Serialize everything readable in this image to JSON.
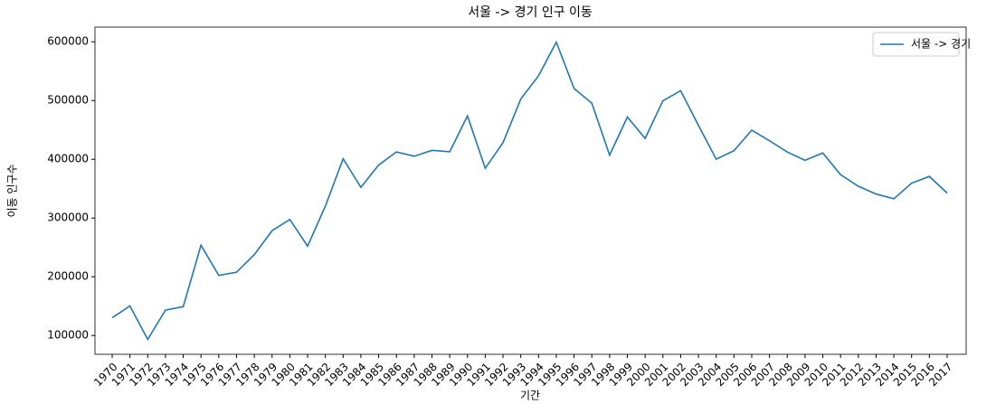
{
  "chart_data": {
    "type": "line",
    "title": "서울 -> 경기 인구 이동",
    "x_label": "기간",
    "y_label": "이동 인구수",
    "categories": [
      "1970",
      "1971",
      "1972",
      "1973",
      "1974",
      "1975",
      "1976",
      "1977",
      "1978",
      "1979",
      "1980",
      "1981",
      "1982",
      "1983",
      "1984",
      "1985",
      "1986",
      "1987",
      "1988",
      "1989",
      "1990",
      "1991",
      "1992",
      "1993",
      "1994",
      "1995",
      "1996",
      "1997",
      "1998",
      "1999",
      "2000",
      "2001",
      "2002",
      "2003",
      "2004",
      "2005",
      "2006",
      "2007",
      "2008",
      "2009",
      "2010",
      "2011",
      "2012",
      "2013",
      "2014",
      "2015",
      "2016",
      "2017"
    ],
    "series": [
      {
        "name": "서울 -> 경기",
        "color": "#1f77b4",
        "values": [
          130149,
          150313,
          93333,
          143234,
          149045,
          253705,
          202276,
          207722,
          237684,
          278411,
          297539,
          252073,
          320174,
          400875,
          352238,
          390265,
          412535,
          405220,
          415174,
          412847,
          473889,
          384714,
          428344,
          502584,
          542204,
          599411,
          520566,
          495454,
          407050,
          471841,
          435573,
          499575,
          516765,
          457656,
          400206,
          414621,
          449632,
          431637,
          412408,
          398282,
          410735,
          373771,
          354135,
          340801,
          332785,
          359337,
          370760,
          342433
        ]
      }
    ],
    "ylim": [
      68000,
      625000
    ],
    "yticks": [
      100000,
      200000,
      300000,
      400000,
      500000,
      600000
    ],
    "legend": "upper right"
  }
}
